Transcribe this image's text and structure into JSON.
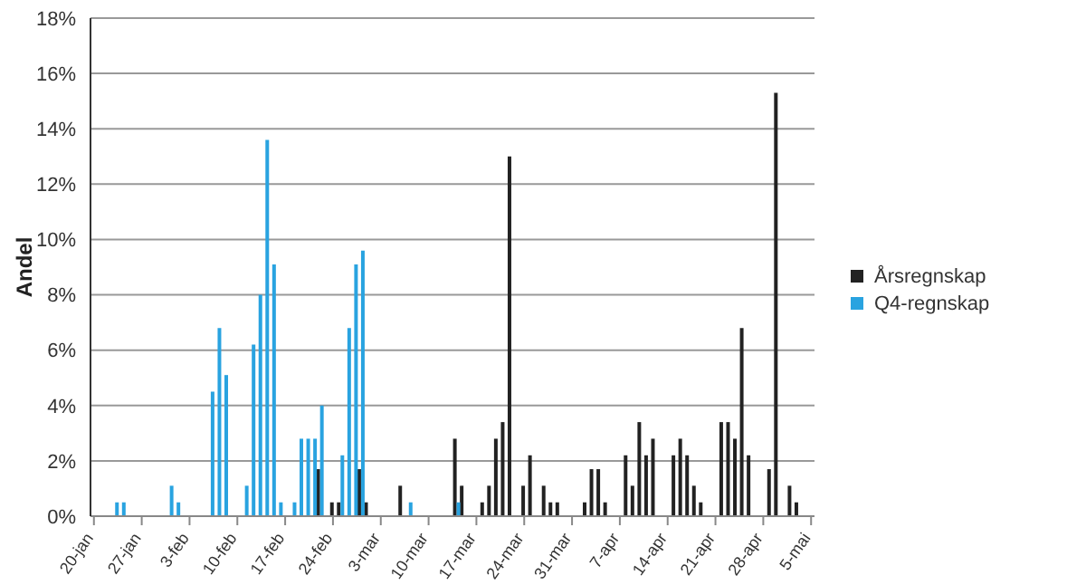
{
  "chart_data": {
    "type": "bar",
    "ylabel": "Andel",
    "categories": [
      "20-jan",
      null,
      null,
      null,
      null,
      null,
      null,
      "27-jan",
      null,
      null,
      null,
      null,
      null,
      null,
      "3-feb",
      null,
      null,
      null,
      null,
      null,
      null,
      "10-feb",
      null,
      null,
      null,
      null,
      null,
      null,
      "17-feb",
      null,
      null,
      null,
      null,
      null,
      null,
      "24-feb",
      null,
      null,
      null,
      null,
      null,
      null,
      "3-mar",
      null,
      null,
      null,
      null,
      null,
      null,
      "10-mar",
      null,
      null,
      null,
      null,
      null,
      null,
      "17-mar",
      null,
      null,
      null,
      null,
      null,
      null,
      "24-mar",
      null,
      null,
      null,
      null,
      null,
      null,
      "31-mar",
      null,
      null,
      null,
      null,
      null,
      null,
      "7-apr",
      null,
      null,
      null,
      null,
      null,
      null,
      "14-apr",
      null,
      null,
      null,
      null,
      null,
      null,
      "21-apr",
      null,
      null,
      null,
      null,
      null,
      null,
      "28-apr",
      null,
      null,
      null,
      null,
      null,
      null,
      "5-mai"
    ],
    "series": [
      {
        "name": "Årsregnskap",
        "color": "#222222",
        "values": [
          null,
          null,
          null,
          null,
          null,
          null,
          null,
          null,
          null,
          null,
          null,
          null,
          null,
          null,
          null,
          null,
          null,
          null,
          null,
          null,
          null,
          null,
          null,
          null,
          null,
          null,
          null,
          null,
          null,
          null,
          null,
          null,
          null,
          1.7,
          null,
          0.5,
          0.5,
          null,
          null,
          1.7,
          0.5,
          null,
          null,
          null,
          null,
          1.1,
          null,
          null,
          null,
          null,
          null,
          null,
          null,
          2.8,
          1.1,
          null,
          null,
          0.5,
          1.1,
          2.8,
          3.4,
          13.0,
          null,
          1.1,
          2.2,
          null,
          1.1,
          0.5,
          0.5,
          null,
          null,
          null,
          0.5,
          1.7,
          1.7,
          0.5,
          null,
          null,
          2.2,
          1.1,
          3.4,
          2.2,
          2.8,
          null,
          null,
          2.2,
          2.8,
          2.2,
          1.1,
          0.5,
          null,
          null,
          3.4,
          3.4,
          2.8,
          6.8,
          2.2,
          null,
          null,
          1.7,
          15.3,
          null,
          1.1,
          0.5,
          null,
          null
        ]
      },
      {
        "name": "Q4-regnskap",
        "color": "#29a3e0",
        "values": [
          null,
          null,
          null,
          0.5,
          0.5,
          null,
          null,
          null,
          null,
          null,
          null,
          1.1,
          0.5,
          null,
          null,
          null,
          null,
          4.5,
          6.8,
          5.1,
          null,
          null,
          1.1,
          6.2,
          8.0,
          13.6,
          9.1,
          0.5,
          null,
          0.5,
          2.8,
          2.8,
          2.8,
          4.0,
          null,
          null,
          2.2,
          6.8,
          9.1,
          9.6,
          null,
          null,
          null,
          null,
          null,
          null,
          0.5,
          null,
          null,
          null,
          null,
          null,
          null,
          0.5,
          null,
          null,
          null,
          null,
          null,
          null,
          null,
          null,
          null,
          null,
          null,
          null,
          null,
          null,
          null,
          null,
          null,
          null,
          null,
          null,
          null,
          null,
          null,
          null,
          null,
          null,
          null,
          null,
          null,
          null,
          null,
          null,
          null,
          null,
          null,
          null,
          null,
          null,
          null,
          null,
          null,
          null,
          null,
          null,
          null,
          null,
          null,
          null,
          null,
          null,
          null,
          null
        ]
      }
    ],
    "ylim": [
      0,
      18
    ],
    "yticks": [
      {
        "value": 0,
        "label": "0%"
      },
      {
        "value": 2,
        "label": "2%"
      },
      {
        "value": 4,
        "label": "4%"
      },
      {
        "value": 6,
        "label": "6%"
      },
      {
        "value": 8,
        "label": "8%"
      },
      {
        "value": 10,
        "label": "10%"
      },
      {
        "value": 12,
        "label": "12%"
      },
      {
        "value": 14,
        "label": "14%"
      },
      {
        "value": 16,
        "label": "16%"
      },
      {
        "value": 18,
        "label": "18%"
      }
    ],
    "grid": "y",
    "legend": "right"
  }
}
